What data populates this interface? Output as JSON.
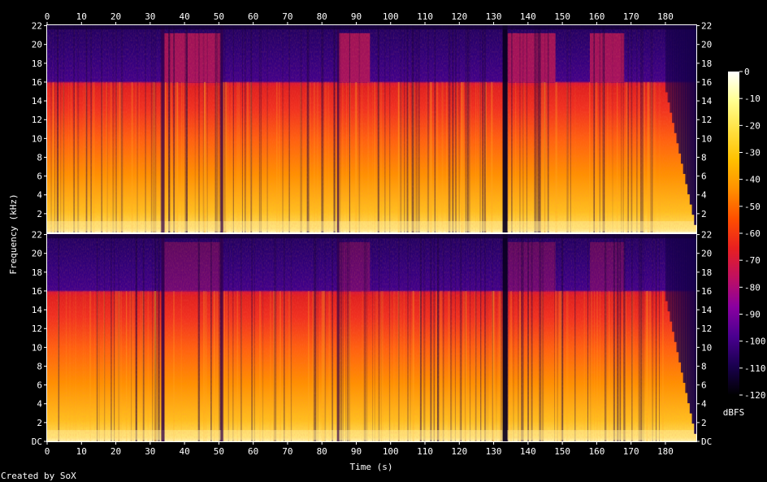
{
  "chart_data": {
    "type": "heatmap",
    "software": "SoX",
    "xlabel": "Time (s)",
    "ylabel": "Frequency (kHz)",
    "x_ticks": [
      "0",
      "10",
      "20",
      "30",
      "40",
      "50",
      "60",
      "70",
      "80",
      "90",
      "100",
      "110",
      "120",
      "130",
      "140",
      "150",
      "160",
      "170",
      "180"
    ],
    "xlim": [
      0,
      189
    ],
    "y_ticks": [
      "DC",
      "2",
      "4",
      "6",
      "8",
      "10",
      "12",
      "14",
      "16",
      "18",
      "20",
      "22"
    ],
    "y_tick_values": [
      0,
      2,
      4,
      6,
      8,
      10,
      12,
      14,
      16,
      18,
      20,
      22
    ],
    "ylim_khz": [
      0,
      22.05
    ],
    "channels": 2,
    "lowpass_cutoff_khz": 16,
    "colorbar": {
      "label": "dBFS",
      "ticks": [
        "-120",
        "-110",
        "-100",
        "-90",
        "-80",
        "-70",
        "-60",
        "-50",
        "-40",
        "-30",
        "-20",
        "-10",
        "0"
      ],
      "range": [
        -120,
        0
      ],
      "colors": [
        "#000000",
        "#1a0050",
        "#4a0090",
        "#8a00a0",
        "#c01060",
        "#e82020",
        "#ff5000",
        "#ff9000",
        "#ffc000",
        "#ffe040",
        "#ffff90",
        "#ffffff"
      ]
    },
    "silence_gaps_s": [
      [
        33.2,
        34.2
      ],
      [
        50.5,
        51.3
      ],
      [
        84.4,
        85.0
      ],
      [
        132.6,
        134.0
      ]
    ],
    "louder_sections_s": [
      [
        34.0,
        50.5
      ],
      [
        85.0,
        94.0
      ],
      [
        134.0,
        148.0
      ],
      [
        158.0,
        168.0
      ]
    ],
    "fade_out_s": [
      180,
      189
    ]
  },
  "footer": {
    "credit": "Created by SoX"
  }
}
